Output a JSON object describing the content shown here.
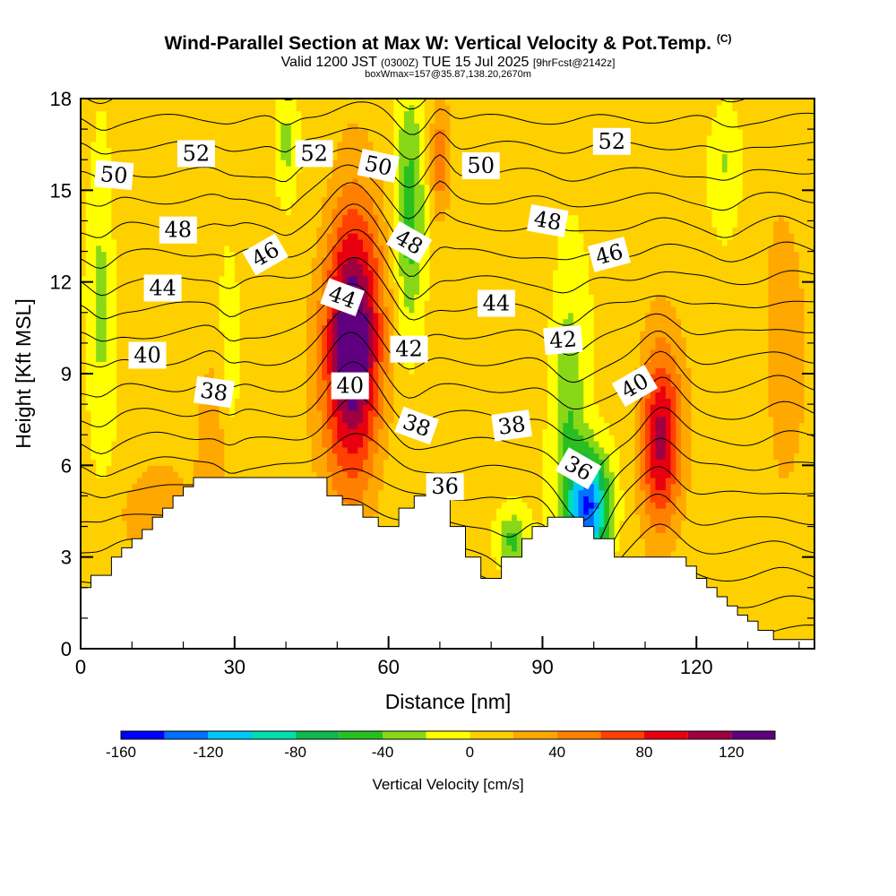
{
  "header": {
    "title": "Wind-Parallel Section at Max W: Vertical Velocity & Pot.Temp.",
    "title_mark": "(C)",
    "valid_prefix": "Valid 1200 JST",
    "valid_utc": "(0300Z)",
    "valid_date": "TUE 15 Jul 2025",
    "forecast": "[9hrFcst@2142z]",
    "box_info": "boxWmax=157@35.87,138.20,2670m"
  },
  "chart_data": {
    "type": "heatmap",
    "xlabel": "Distance [nm]",
    "ylabel": "Height [Kft MSL]",
    "xlim": [
      0,
      143
    ],
    "ylim": [
      0,
      18
    ],
    "x_ticks": [
      0,
      30,
      60,
      90,
      120
    ],
    "y_ticks": [
      0,
      3,
      6,
      9,
      12,
      15,
      18
    ],
    "colorbar": {
      "title": "Vertical Velocity [cm/s]",
      "levels": [
        -160,
        -140,
        -120,
        -100,
        -80,
        -60,
        -40,
        -20,
        0,
        20,
        40,
        60,
        80,
        100,
        120,
        140
      ],
      "tick_labels": [
        "-160",
        "-120",
        "-80",
        "-40",
        "0",
        "40",
        "80",
        "120"
      ],
      "colors": [
        "#0000ff",
        "#0070ff",
        "#00c8ff",
        "#00e0b0",
        "#10b850",
        "#28c020",
        "#88d818",
        "#ffff00",
        "#ffd000",
        "#ffa800",
        "#ff8000",
        "#ff4000",
        "#e80010",
        "#a00040",
        "#600080"
      ]
    },
    "terrain_profile": {
      "x": [
        0,
        2,
        2,
        6,
        6,
        8,
        8,
        10,
        10,
        12,
        12,
        14,
        14,
        16,
        16,
        18,
        18,
        20,
        20,
        22,
        22,
        26,
        26,
        48,
        48,
        51,
        51,
        55,
        55,
        58,
        58,
        62,
        62,
        65,
        65,
        72,
        72,
        75,
        75,
        78,
        78,
        82,
        82,
        86,
        86,
        88,
        88,
        91,
        91,
        98,
        98,
        100,
        100,
        104,
        104,
        110,
        110,
        114,
        114,
        118,
        118,
        120,
        120,
        122,
        122,
        124,
        124,
        126,
        126,
        128,
        128,
        130,
        130,
        132,
        132,
        135,
        135,
        139,
        139,
        143
      ],
      "y": [
        2.0,
        2.0,
        2.4,
        2.4,
        3.0,
        3.0,
        3.3,
        3.3,
        3.6,
        3.6,
        3.9,
        3.9,
        4.3,
        4.3,
        4.6,
        4.6,
        5.0,
        5.0,
        5.3,
        5.3,
        5.6,
        5.6,
        5.6,
        5.6,
        5.0,
        5.0,
        4.7,
        4.7,
        4.3,
        4.3,
        4.0,
        4.0,
        4.6,
        4.6,
        5.0,
        5.0,
        4.0,
        4.0,
        3.0,
        3.0,
        2.3,
        2.3,
        3.0,
        3.0,
        3.6,
        3.6,
        4.0,
        4.0,
        4.3,
        4.3,
        4.0,
        4.0,
        3.6,
        3.6,
        3.0,
        3.0,
        3.0,
        3.0,
        3.0,
        3.0,
        2.7,
        2.7,
        2.3,
        2.3,
        2.0,
        2.0,
        1.7,
        1.7,
        1.4,
        1.4,
        1.1,
        1.1,
        0.9,
        0.9,
        0.6,
        0.6,
        0.3,
        0.3,
        0.3,
        0.3
      ]
    },
    "vertical_velocity_features": [
      {
        "x": 53,
        "y": 10.0,
        "rx": 5.5,
        "ry": 4.2,
        "peak": 150
      },
      {
        "x": 113,
        "y": 6.8,
        "rx": 4.0,
        "ry": 3.0,
        "peak": 100
      },
      {
        "x": 99,
        "y": 4.6,
        "rx": 4.0,
        "ry": 1.8,
        "peak": -150
      },
      {
        "x": 64,
        "y": 14.0,
        "rx": 3.0,
        "ry": 4.0,
        "peak": -60
      },
      {
        "x": 95,
        "y": 8.0,
        "rx": 3.5,
        "ry": 4.0,
        "peak": -50
      },
      {
        "x": 84,
        "y": 3.5,
        "rx": 3.0,
        "ry": 1.0,
        "peak": -50
      },
      {
        "x": 29,
        "y": 9.5,
        "rx": 2.0,
        "ry": 3.5,
        "peak": -30
      },
      {
        "x": 4,
        "y": 12.0,
        "rx": 2.5,
        "ry": 6.0,
        "peak": -30
      },
      {
        "x": 40,
        "y": 16.5,
        "rx": 2.0,
        "ry": 2.0,
        "peak": -30
      },
      {
        "x": 126,
        "y": 16.0,
        "rx": 3.0,
        "ry": 2.0,
        "peak": -30
      },
      {
        "x": 70,
        "y": 16.0,
        "rx": 2.0,
        "ry": 2.0,
        "peak": 50
      },
      {
        "x": 27,
        "y": 7.0,
        "rx": 4.0,
        "ry": 4.0,
        "peak": 25
      },
      {
        "x": 14,
        "y": 4.5,
        "rx": 6.0,
        "ry": 1.5,
        "peak": 35
      },
      {
        "x": 137,
        "y": 9.0,
        "rx": 4.0,
        "ry": 5.0,
        "peak": 25
      }
    ],
    "theta_contours": {
      "levels": [
        34,
        35,
        36,
        37,
        38,
        39,
        40,
        41,
        42,
        43,
        44,
        45,
        46,
        47,
        48,
        49,
        50,
        51,
        52,
        53,
        54,
        55
      ],
      "labels": [
        {
          "text": "52",
          "x": 22.5,
          "y": 16.2,
          "angle": 0
        },
        {
          "text": "52",
          "x": 45.5,
          "y": 16.2,
          "angle": 0
        },
        {
          "text": "52",
          "x": 103.5,
          "y": 16.6,
          "angle": 0
        },
        {
          "text": "50",
          "x": 6.5,
          "y": 15.5,
          "angle": 5
        },
        {
          "text": "50",
          "x": 58,
          "y": 15.8,
          "angle": 12
        },
        {
          "text": "50",
          "x": 78,
          "y": 15.8,
          "angle": 0
        },
        {
          "text": "48",
          "x": 19,
          "y": 13.7,
          "angle": 0
        },
        {
          "text": "48",
          "x": 64,
          "y": 13.3,
          "angle": 30
        },
        {
          "text": "48",
          "x": 91,
          "y": 14.0,
          "angle": 10
        },
        {
          "text": "46",
          "x": 36,
          "y": 12.9,
          "angle": -30
        },
        {
          "text": "46",
          "x": 103,
          "y": 12.9,
          "angle": -15
        },
        {
          "text": "44",
          "x": 16,
          "y": 11.8,
          "angle": 0
        },
        {
          "text": "44",
          "x": 51,
          "y": 11.5,
          "angle": 20
        },
        {
          "text": "44",
          "x": 81,
          "y": 11.3,
          "angle": 0
        },
        {
          "text": "42",
          "x": 64,
          "y": 9.8,
          "angle": 0
        },
        {
          "text": "42",
          "x": 94,
          "y": 10.1,
          "angle": -5
        },
        {
          "text": "40",
          "x": 13,
          "y": 9.6,
          "angle": 0
        },
        {
          "text": "40",
          "x": 52.5,
          "y": 8.6,
          "angle": 0
        },
        {
          "text": "40",
          "x": 108,
          "y": 8.6,
          "angle": -30
        },
        {
          "text": "38",
          "x": 26,
          "y": 8.4,
          "angle": 8
        },
        {
          "text": "38",
          "x": 65.5,
          "y": 7.3,
          "angle": 20
        },
        {
          "text": "38",
          "x": 84,
          "y": 7.3,
          "angle": -8
        },
        {
          "text": "36",
          "x": 71,
          "y": 5.3,
          "angle": 0
        },
        {
          "text": "36",
          "x": 97,
          "y": 5.9,
          "angle": 30
        }
      ]
    },
    "grid": false
  }
}
